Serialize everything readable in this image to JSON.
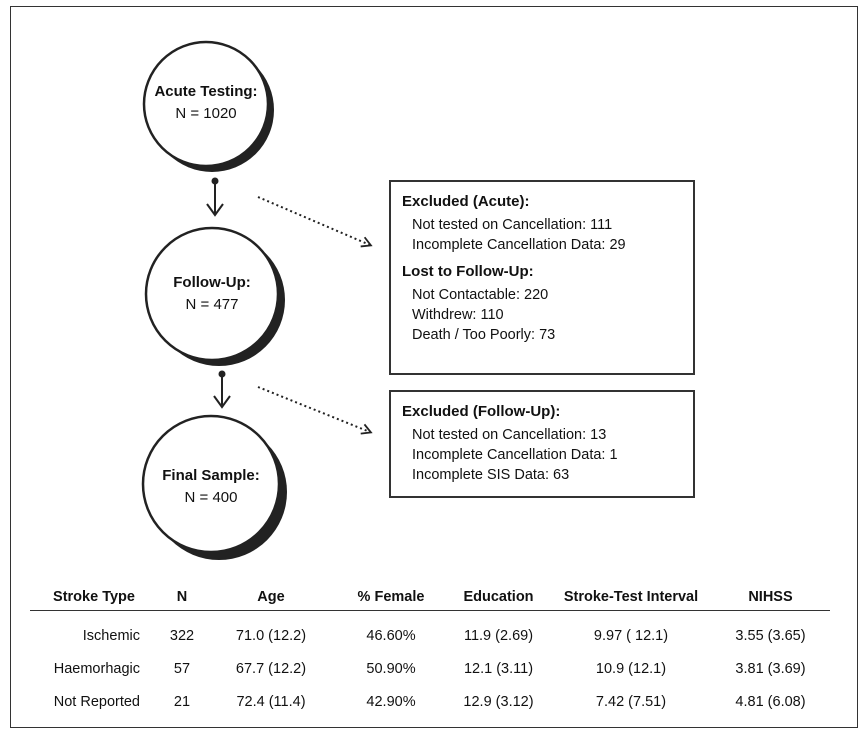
{
  "nodes": {
    "acute": {
      "title": "Acute Testing:",
      "n": "N = 1020"
    },
    "followup": {
      "title": "Follow-Up:",
      "n": "N = 477"
    },
    "final": {
      "title": "Final Sample:",
      "n": "N = 400"
    }
  },
  "box_acute": {
    "excluded_header": "Excluded (Acute):",
    "excluded_items": [
      "Not tested on Cancellation: 111",
      "Incomplete Cancellation Data: 29"
    ],
    "lost_header": "Lost to Follow-Up:",
    "lost_items": [
      "Not Contactable: 220",
      "Withdrew: 110",
      "Death / Too Poorly: 73"
    ]
  },
  "box_followup": {
    "header": "Excluded (Follow-Up):",
    "items": [
      "Not tested on Cancellation: 13",
      "Incomplete Cancellation Data: 1",
      "Incomplete SIS Data: 63"
    ]
  },
  "table": {
    "headers": [
      "Stroke Type",
      "N",
      "Age",
      "% Female",
      "Education",
      "Stroke-Test Interval",
      "NIHSS"
    ],
    "rows": [
      [
        "Ischemic",
        "322",
        "71.0 (12.2)",
        "46.60%",
        "11.9 (2.69)",
        "9.97 ( 12.1)",
        "3.55 (3.65)"
      ],
      [
        "Haemorhagic",
        "57",
        "67.7 (12.2)",
        "50.90%",
        "12.1 (3.11)",
        "10.9 (12.1)",
        "3.81 (3.69)"
      ],
      [
        "Not Reported",
        "21",
        "72.4 (11.4)",
        "42.90%",
        "12.9 (3.12)",
        "7.42 (7.51)",
        "4.81 (6.08)"
      ]
    ]
  }
}
